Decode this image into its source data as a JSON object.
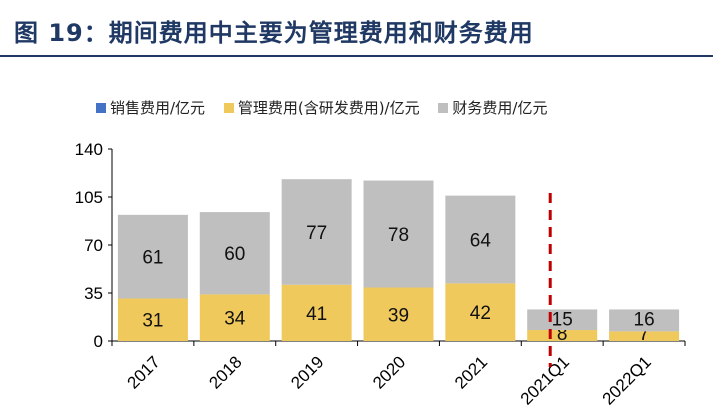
{
  "header": {
    "title": "图 19：期间费用中主要为管理费用和财务费用"
  },
  "chart_data": {
    "type": "bar",
    "stacked": true,
    "categories": [
      "2017",
      "2018",
      "2019",
      "2020",
      "2021",
      "2021Q1",
      "2022Q1"
    ],
    "series": [
      {
        "name": "销售费用/亿元",
        "color": "#4472c4",
        "values": [
          0,
          0,
          0,
          0,
          0,
          0,
          0
        ],
        "labels": []
      },
      {
        "name": "管理费用(含研发费用)/亿元",
        "color": "#f0c95c",
        "values": [
          31,
          34,
          41,
          39,
          42,
          8,
          7
        ],
        "labels": [
          "31",
          "34",
          "41",
          "39",
          "42",
          "8",
          "7"
        ]
      },
      {
        "name": "财务费用/亿元",
        "color": "#bfbfbf",
        "values": [
          61,
          60,
          77,
          78,
          64,
          15,
          16
        ],
        "labels": [
          "61",
          "60",
          "77",
          "78",
          "64",
          "15",
          "16"
        ]
      }
    ],
    "ylim": [
      0,
      140
    ],
    "yticks": [
      "0",
      "35",
      "70",
      "105",
      "140"
    ],
    "legend_position": "top",
    "separator": "dashed red vertical line between 2021 and 2021Q1",
    "grid": false
  }
}
